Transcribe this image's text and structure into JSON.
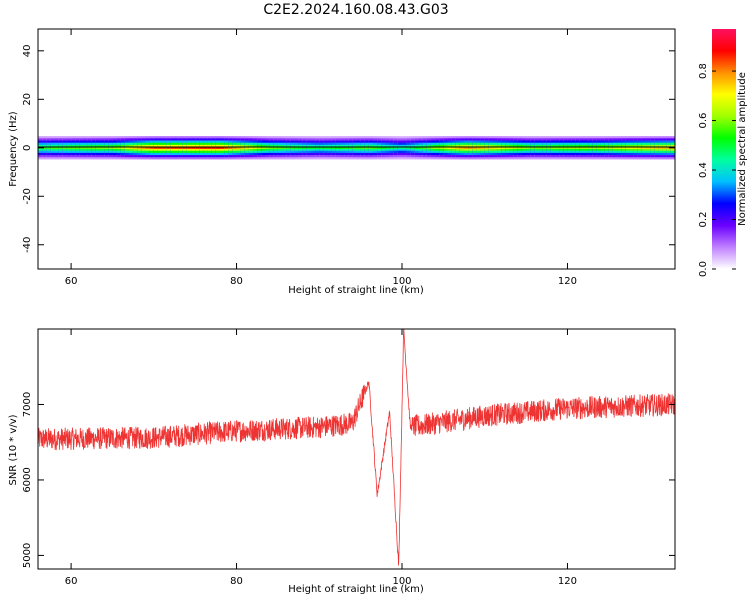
{
  "title": "C2E2.2024.160.08.43.G03",
  "colorbar": {
    "label": "Normalized spectral amplitude",
    "ticks": [
      "0.0",
      "0.2",
      "0.4",
      "0.6",
      "0.8"
    ],
    "tick_values": [
      0.0,
      0.2,
      0.4,
      0.6,
      0.8
    ],
    "range": [
      0,
      0.97
    ],
    "colors": [
      "#ffffff",
      "#c080ff",
      "#6a00ff",
      "#0000ff",
      "#00c0ff",
      "#00ffa0",
      "#00ff00",
      "#a0ff00",
      "#ffff00",
      "#ff9000",
      "#ff0000",
      "#ff1060"
    ]
  },
  "chart_data": [
    {
      "type": "heatmap",
      "xlabel": "Height of straight line (km)",
      "ylabel": "Frequency (Hz)",
      "xlim": [
        56,
        133
      ],
      "ylim": [
        -50,
        49
      ],
      "xticks": [
        60,
        80,
        100,
        120
      ],
      "xtick_labels": [
        "60",
        "80",
        "100",
        "120"
      ],
      "yticks": [
        40,
        20,
        0,
        -20,
        -40
      ],
      "ytick_labels": [
        "40",
        "20",
        "0",
        "-20",
        "-40"
      ],
      "band": {
        "center_hz": 0,
        "half_width_hz": 3,
        "profile": [
          {
            "x": 56,
            "level": 0.55
          },
          {
            "x": 65,
            "level": 0.62
          },
          {
            "x": 70,
            "level": 0.85
          },
          {
            "x": 78,
            "level": 0.88
          },
          {
            "x": 84,
            "level": 0.6
          },
          {
            "x": 90,
            "level": 0.5
          },
          {
            "x": 96,
            "level": 0.58
          },
          {
            "x": 100,
            "level": 0.45
          },
          {
            "x": 108,
            "level": 0.8
          },
          {
            "x": 116,
            "level": 0.6
          },
          {
            "x": 124,
            "level": 0.65
          },
          {
            "x": 133,
            "level": 0.78
          }
        ]
      },
      "colors": {
        "line": "#000000"
      }
    },
    {
      "type": "line",
      "xlabel": "Height of straight line (km)",
      "ylabel": "SNR (10 * v/v)",
      "xlim": [
        56,
        133
      ],
      "ylim": [
        4820,
        8000
      ],
      "xticks": [
        60,
        80,
        100,
        120
      ],
      "xtick_labels": [
        "60",
        "80",
        "100",
        "120"
      ],
      "yticks": [
        7000,
        6000,
        5000
      ],
      "ytick_labels": [
        "7000",
        "6000",
        "5000"
      ],
      "series": [
        {
          "color": "#ee3333",
          "trend": [
            {
              "x": 56,
              "y": 6540
            },
            {
              "x": 70,
              "y": 6560
            },
            {
              "x": 80,
              "y": 6650
            },
            {
              "x": 90,
              "y": 6700
            },
            {
              "x": 94,
              "y": 6750
            },
            {
              "x": 96,
              "y": 7300
            },
            {
              "x": 97,
              "y": 5800
            },
            {
              "x": 98.5,
              "y": 6900
            },
            {
              "x": 99.6,
              "y": 4850
            },
            {
              "x": 100.2,
              "y": 8000
            },
            {
              "x": 101,
              "y": 6700
            },
            {
              "x": 110,
              "y": 6850
            },
            {
              "x": 120,
              "y": 6950
            },
            {
              "x": 133,
              "y": 7000
            }
          ],
          "noise_amplitude": 150
        }
      ]
    }
  ]
}
